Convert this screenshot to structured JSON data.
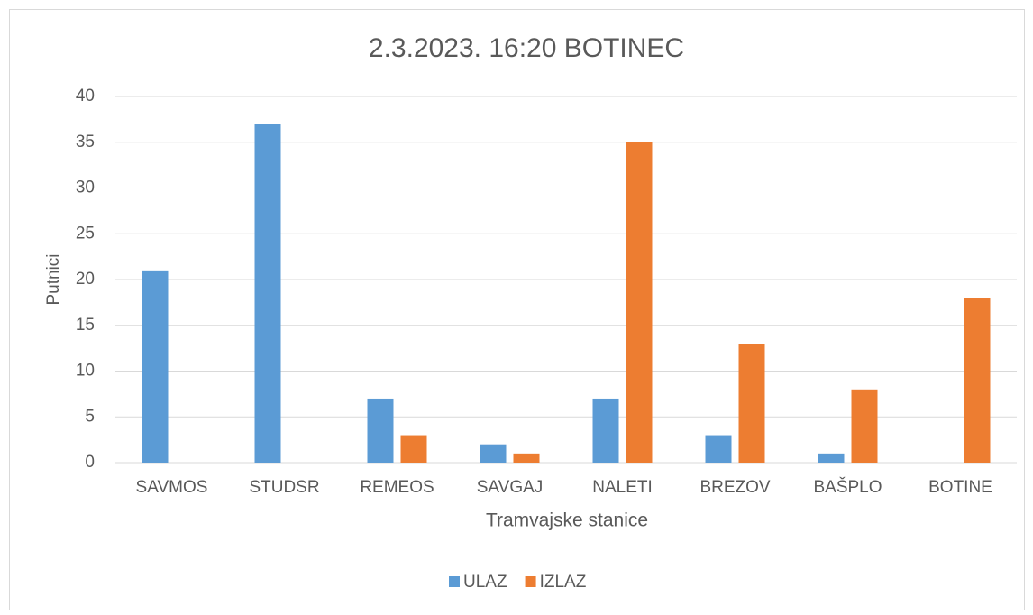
{
  "chart_data": {
    "type": "bar",
    "title": "2.3.2023. 16:20 BOTINEC",
    "x_label": "Tramvajske stanice",
    "y_label": "Putnici",
    "categories": [
      "SAVMOS",
      "STUDSR",
      "REMEOS",
      "SAVGAJ",
      "NALETI",
      "BREZOV",
      "BAŠPLO",
      "BOTINE"
    ],
    "series": [
      {
        "name": "ULAZ",
        "color": "#5b9bd5",
        "values": [
          21,
          37,
          7,
          2,
          7,
          3,
          1,
          0
        ]
      },
      {
        "name": "IZLAZ",
        "color": "#ed7d31",
        "values": [
          0,
          0,
          3,
          1,
          35,
          13,
          8,
          18
        ]
      }
    ],
    "ylim": [
      0,
      40
    ],
    "yticks": [
      0,
      5,
      10,
      15,
      20,
      25,
      30,
      35,
      40
    ],
    "grid": true,
    "legend": "bottom"
  }
}
